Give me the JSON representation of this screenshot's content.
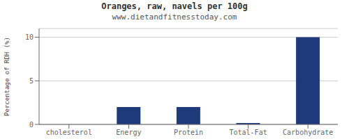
{
  "chart_data": {
    "type": "bar",
    "title": "Oranges, raw, navels per 100g",
    "subtitle": "www.dietandfitnesstoday.com",
    "categories": [
      "cholesterol",
      "Energy",
      "Protein",
      "Total-Fat",
      "Carbohydrate"
    ],
    "values": [
      0,
      2.0,
      2.0,
      0.15,
      10.0
    ],
    "color": "#1f3a7a",
    "ylabel": "Percentage of RDH (%)",
    "ylim": [
      0,
      11
    ],
    "yticks": [
      0,
      5,
      10
    ],
    "grid": true
  }
}
